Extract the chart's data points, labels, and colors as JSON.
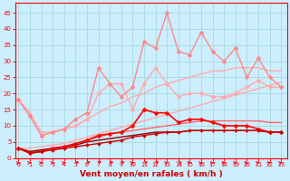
{
  "x": [
    0,
    1,
    2,
    3,
    4,
    5,
    6,
    7,
    8,
    9,
    10,
    11,
    12,
    13,
    14,
    15,
    16,
    17,
    18,
    19,
    20,
    21,
    22,
    23
  ],
  "series": [
    {
      "name": "line_trend_lower_light",
      "y": [
        3,
        3,
        3.5,
        4,
        4.5,
        5.5,
        6.5,
        7.5,
        8.5,
        9.5,
        10.5,
        11.5,
        12.5,
        13.5,
        14.5,
        15.5,
        16.5,
        17.5,
        18.5,
        19.5,
        20.5,
        21.5,
        22.5,
        23.5
      ],
      "color": "#ffaaaa",
      "lw": 1.0,
      "marker": null
    },
    {
      "name": "line_trend_upper_light",
      "y": [
        18,
        14,
        8,
        8,
        9,
        10,
        12,
        14,
        16,
        17,
        19,
        20,
        22,
        23,
        24,
        25,
        26,
        27,
        27,
        28,
        28,
        28,
        27,
        27
      ],
      "color": "#ffaaaa",
      "lw": 1.0,
      "marker": null
    },
    {
      "name": "line_light_marker",
      "y": [
        18,
        13,
        7,
        8,
        9,
        10,
        12,
        20,
        23,
        23,
        15,
        23,
        28,
        23,
        19,
        20,
        20,
        19,
        19,
        20,
        22,
        24,
        22,
        22
      ],
      "color": "#ffaaaa",
      "lw": 1.0,
      "marker": "D",
      "ms": 2.5
    },
    {
      "name": "line_pink_marker",
      "y": [
        18,
        13,
        7,
        8,
        9,
        12,
        14,
        28,
        23,
        19,
        22,
        36,
        34,
        45,
        33,
        32,
        39,
        33,
        30,
        34,
        25,
        31,
        25,
        22
      ],
      "color": "#ff8888",
      "lw": 1.0,
      "marker": "D",
      "ms": 2.5
    },
    {
      "name": "line_trend_red",
      "y": [
        3,
        2,
        2.5,
        3,
        3.5,
        4.5,
        5.5,
        6.5,
        7.5,
        8.0,
        8.5,
        9.0,
        9.5,
        10.0,
        10.5,
        11.0,
        11.5,
        11.5,
        11.5,
        11.5,
        11.5,
        11.5,
        11.0,
        11.0
      ],
      "color": "#ff6666",
      "lw": 1.0,
      "marker": null
    },
    {
      "name": "line_red_marker",
      "y": [
        3,
        1.5,
        2,
        3,
        3.5,
        4.5,
        5.5,
        7,
        7.5,
        8,
        10,
        15,
        14,
        14,
        11,
        12,
        12,
        11,
        10,
        10,
        10,
        9,
        8,
        8
      ],
      "color": "#ff0000",
      "lw": 1.2,
      "marker": "D",
      "ms": 2.5
    },
    {
      "name": "line_darkred_marker",
      "y": [
        3,
        1.5,
        2,
        2.5,
        3,
        3.5,
        4,
        4.5,
        5,
        5.5,
        6.5,
        7,
        7.5,
        8,
        8,
        8.5,
        8.5,
        8.5,
        8.5,
        8.5,
        8.5,
        8.5,
        8,
        8
      ],
      "color": "#cc0000",
      "lw": 1.0,
      "marker": "D",
      "ms": 2.0
    },
    {
      "name": "line_trend_darkred",
      "y": [
        3,
        2,
        2.5,
        3,
        3.5,
        4,
        5,
        5.5,
        6,
        6.5,
        7,
        7.5,
        8,
        8,
        8,
        8.5,
        8.5,
        8.5,
        8.5,
        8.5,
        8.5,
        8.5,
        8,
        8
      ],
      "color": "#880000",
      "lw": 1.0,
      "marker": null
    }
  ],
  "arrow_angles": [
    0,
    5,
    0,
    5,
    10,
    20,
    25,
    35,
    20,
    25,
    15,
    20,
    25,
    15,
    20,
    10,
    5,
    5,
    5,
    5,
    5,
    10,
    10,
    15
  ],
  "ylim": [
    0,
    48
  ],
  "xlim": [
    -0.3,
    23.5
  ],
  "yticks": [
    0,
    5,
    10,
    15,
    20,
    25,
    30,
    35,
    40,
    45
  ],
  "xticks": [
    0,
    1,
    2,
    3,
    4,
    5,
    6,
    7,
    8,
    9,
    10,
    11,
    12,
    13,
    14,
    15,
    16,
    17,
    18,
    19,
    20,
    21,
    22,
    23
  ],
  "xlabel": "Vent moyen/en rafales ( km/h )",
  "bg_color": "#cceeff",
  "grid_color": "#aadddd",
  "axis_color": "#ff0000",
  "text_color": "#ff0000",
  "arrow_color": "#ff0000",
  "xlabel_color": "#cc0000"
}
